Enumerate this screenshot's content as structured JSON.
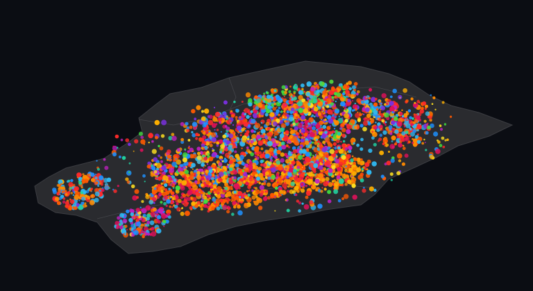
{
  "colors": {
    "background": "#0b0d13",
    "land": "#2a2b2f",
    "border": "#3c3d42",
    "palette": [
      "#ff5a00",
      "#ff8a00",
      "#ffb000",
      "#ff2a2a",
      "#e0105a",
      "#c020c0",
      "#7a30e0",
      "#1e90ff",
      "#30b8f0",
      "#20d0a0",
      "#40e040",
      "#ffe020"
    ]
  }
}
